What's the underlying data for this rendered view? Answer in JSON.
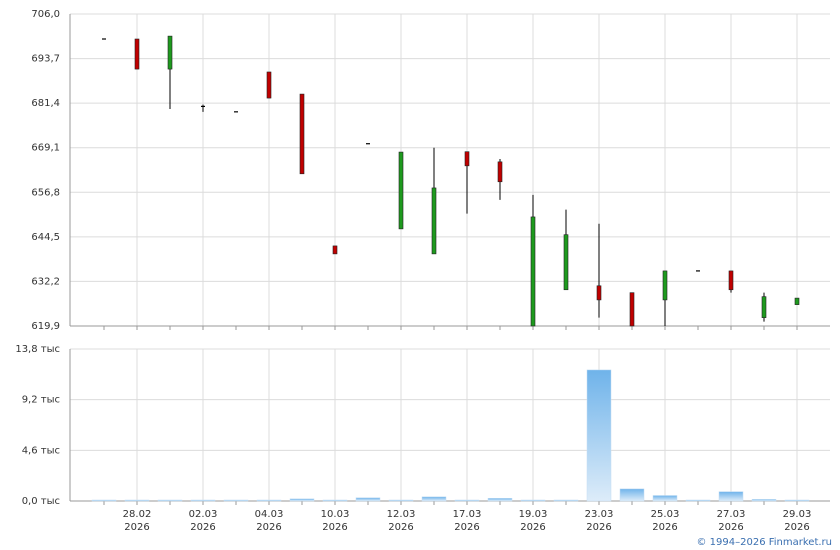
{
  "chart_data": [
    {
      "type": "candlestick",
      "open": [
        699.1,
        699.1,
        690.8,
        680.5,
        679.0,
        690.0,
        683.9,
        642.0,
        670.2,
        646.7,
        639.8,
        668.0,
        665.2,
        619.9,
        629.9,
        631.0,
        629.1,
        627.1,
        635.1,
        635.1,
        622.2,
        625.8
      ],
      "high": [
        699.1,
        699.1,
        699.9,
        681.0,
        679.0,
        690.0,
        683.9,
        642.0,
        670.2,
        667.9,
        669.1,
        668.0,
        666.0,
        656.1,
        652.0,
        648.1,
        629.1,
        635.1,
        635.1,
        635.1,
        629.1,
        627.6
      ],
      "low": [
        699.1,
        690.8,
        679.8,
        679.0,
        679.0,
        682.8,
        661.9,
        639.8,
        670.2,
        646.7,
        639.8,
        650.9,
        654.7,
        619.9,
        629.9,
        622.2,
        619.9,
        619.9,
        635.1,
        629.1,
        621.1,
        625.8
      ],
      "close": [
        699.1,
        690.8,
        699.9,
        680.5,
        679.0,
        682.8,
        661.9,
        639.8,
        670.2,
        667.9,
        658.0,
        664.1,
        659.7,
        650.0,
        645.1,
        627.1,
        619.9,
        635.1,
        635.1,
        629.9,
        628.0,
        627.6
      ],
      "up_color": "#1e9a1e",
      "down_color": "#c00000",
      "ylim": [
        619.9,
        706.0
      ],
      "yticks": [
        {
          "value": 619.9,
          "label": "619,9"
        },
        {
          "value": 632.2,
          "label": "632,2"
        },
        {
          "value": 644.5,
          "label": "644,5"
        },
        {
          "value": 656.8,
          "label": "656,8"
        },
        {
          "value": 669.1,
          "label": "669,1"
        },
        {
          "value": 681.4,
          "label": "681,4"
        },
        {
          "value": 693.7,
          "label": "693,7"
        },
        {
          "value": 706.0,
          "label": "706,0"
        }
      ],
      "grid": true
    },
    {
      "type": "bar",
      "categories": [
        null,
        "28.02",
        null,
        "02.03",
        null,
        "04.03",
        null,
        "10.03",
        null,
        "12.03",
        null,
        "17.03",
        null,
        "19.03",
        null,
        "23.03",
        null,
        "25.03",
        null,
        "27.03",
        null,
        "29.03"
      ],
      "year": "2026",
      "values": [
        30,
        30,
        40,
        30,
        30,
        60,
        200,
        80,
        300,
        80,
        380,
        50,
        250,
        60,
        60,
        11900,
        1100,
        500,
        30,
        850,
        150,
        40
      ],
      "color": "#7ab8ec",
      "ylim": [
        0,
        13800
      ],
      "yticks": [
        {
          "value": 0,
          "label": "0,0 тыс"
        },
        {
          "value": 4600,
          "label": "4,6 тыс"
        },
        {
          "value": 9200,
          "label": "9,2 тыс"
        },
        {
          "value": 13800,
          "label": "13,8 тыс"
        }
      ],
      "grid": true,
      "source": "© 1994–2026 Finmarket.ru"
    }
  ]
}
